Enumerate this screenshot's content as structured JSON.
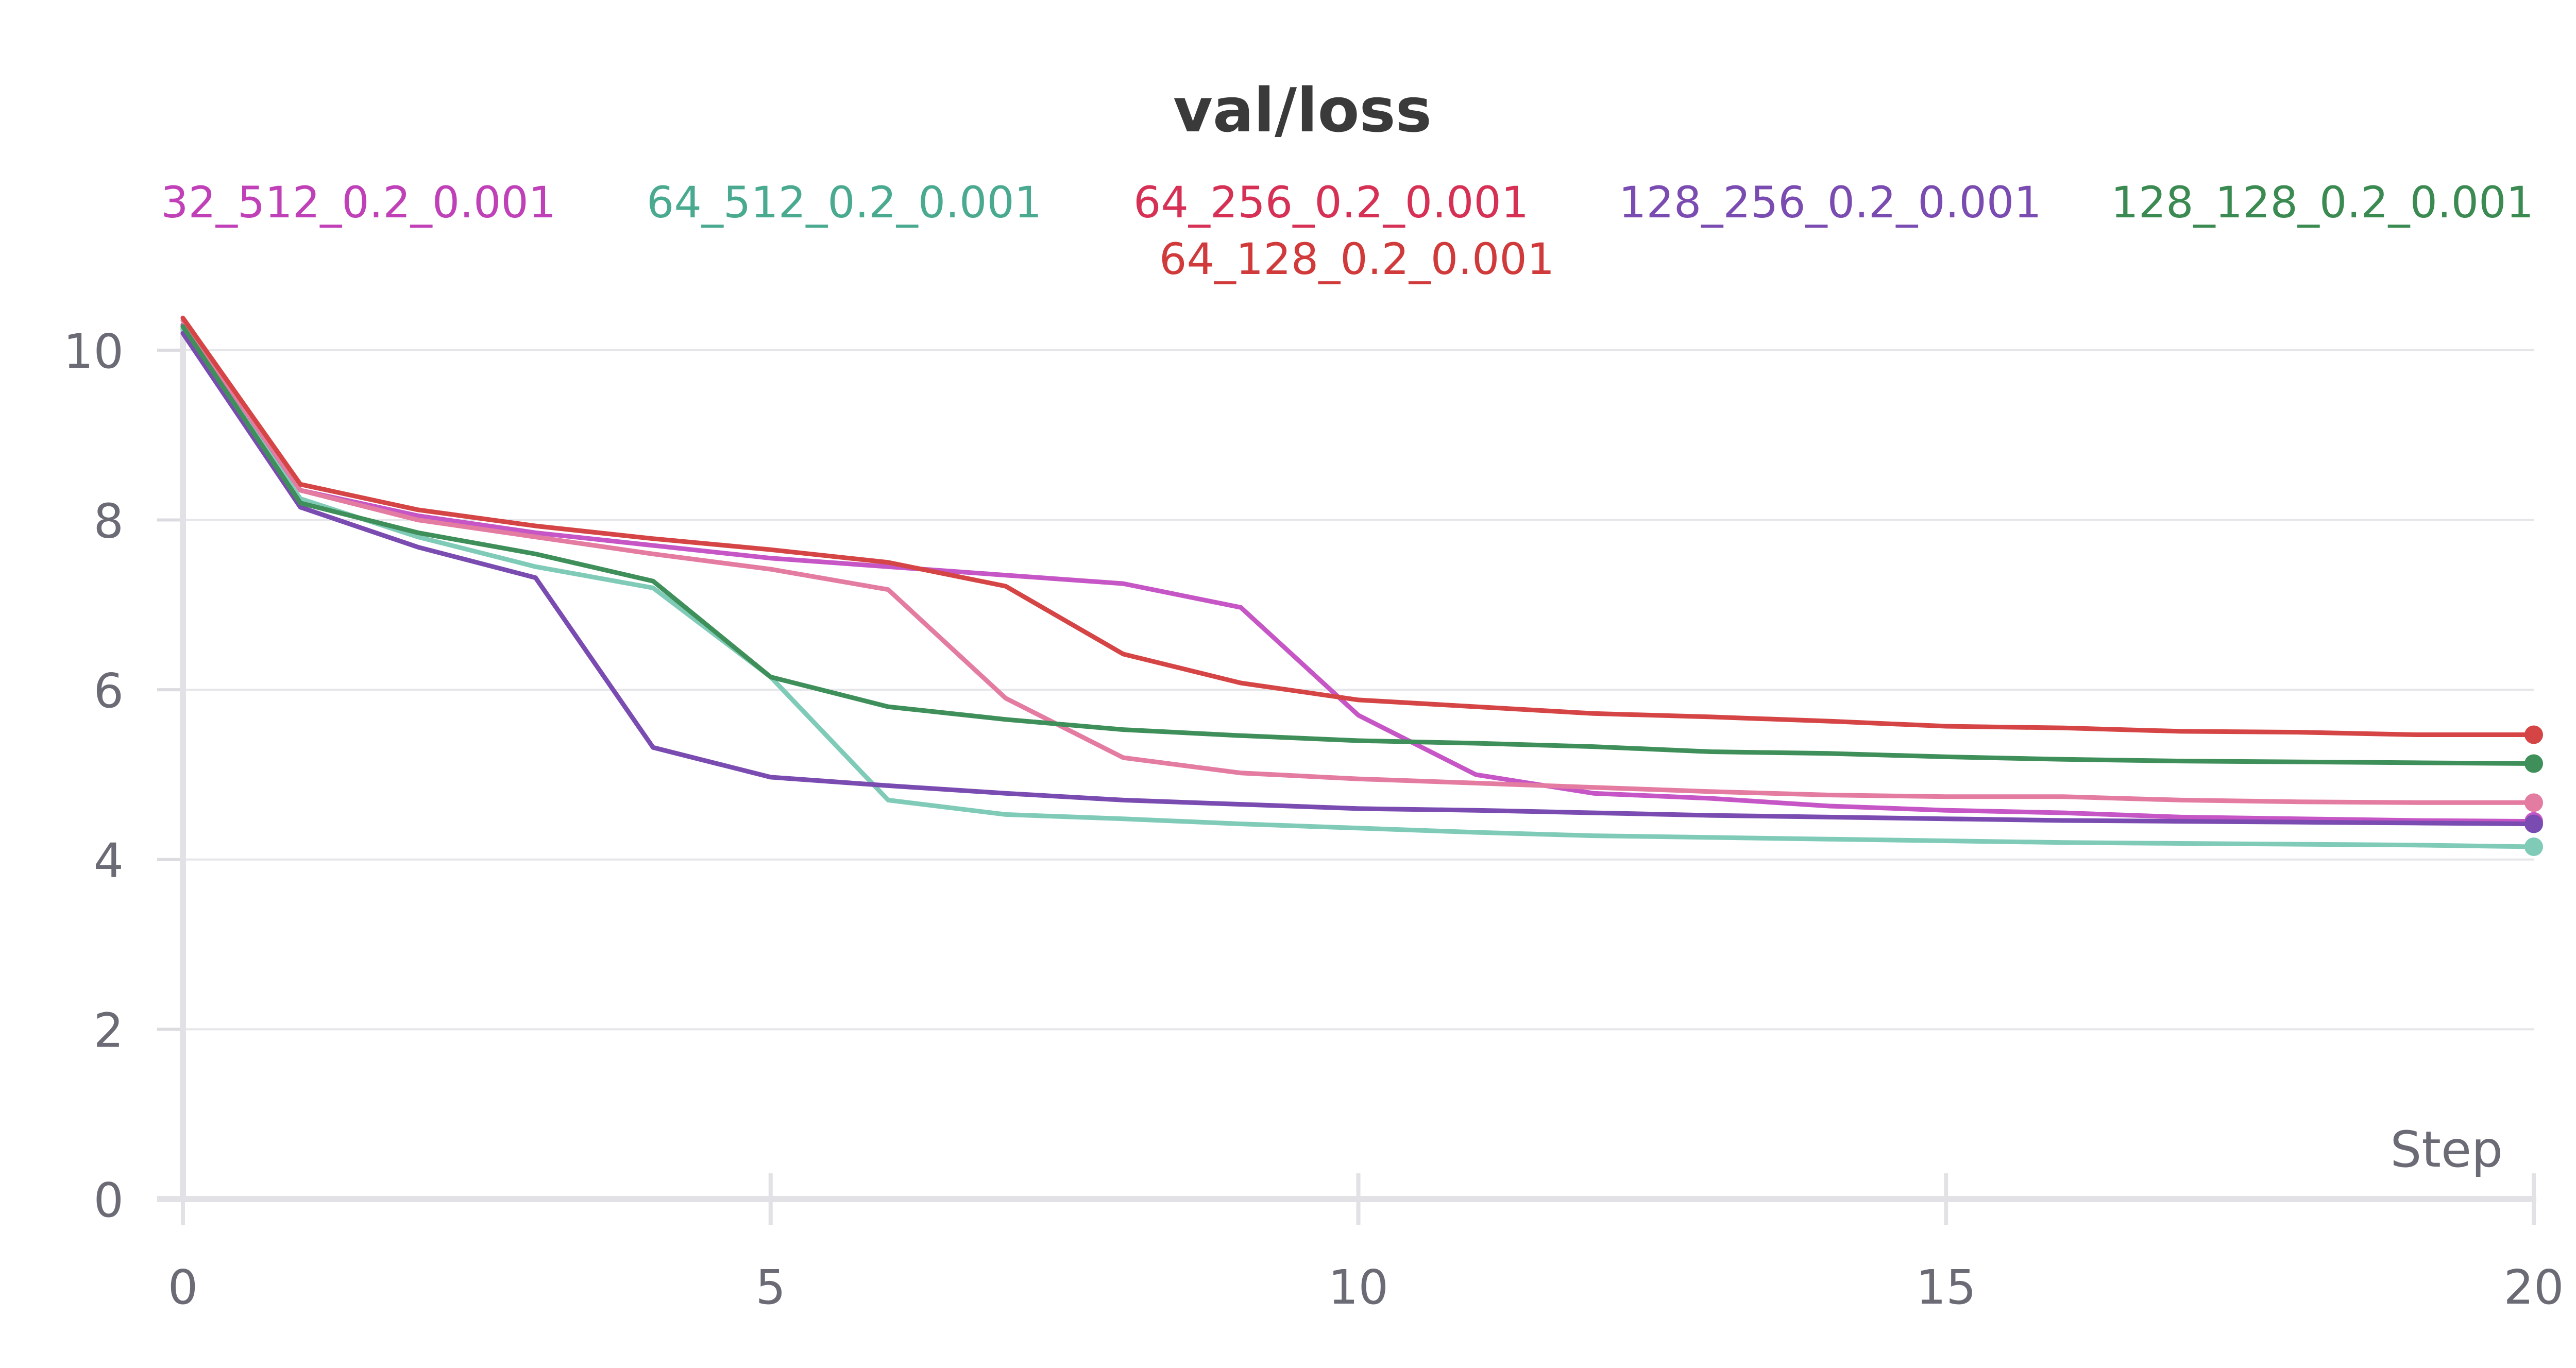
{
  "chart_data": {
    "type": "line",
    "title": "val/loss",
    "xlabel": "Step",
    "ylabel": "",
    "xlim": [
      0,
      20
    ],
    "ylim": [
      0,
      10.4
    ],
    "x_ticks": [
      0,
      5,
      10,
      15,
      20
    ],
    "y_ticks": [
      0,
      2,
      4,
      6,
      8,
      10
    ],
    "grid": true,
    "legend_position": "top",
    "x": [
      0,
      1,
      2,
      3,
      4,
      5,
      6,
      7,
      8,
      9,
      10,
      11,
      12,
      13,
      14,
      15,
      16,
      17,
      18,
      19,
      20
    ],
    "series": [
      {
        "name": "32_512_0.2_0.001",
        "color": "#c656c6",
        "legend_color": "#c040b8",
        "values": [
          10.3,
          8.35,
          8.05,
          7.85,
          7.7,
          7.55,
          7.45,
          7.35,
          7.25,
          6.97,
          5.7,
          5.0,
          4.78,
          4.72,
          4.63,
          4.58,
          4.55,
          4.5,
          4.48,
          4.46,
          4.45
        ]
      },
      {
        "name": "64_512_0.2_0.001",
        "color": "#7fcbb8",
        "legend_color": "#4aaa90",
        "values": [
          10.25,
          8.25,
          7.8,
          7.45,
          7.2,
          6.15,
          4.7,
          4.53,
          4.48,
          4.42,
          4.37,
          4.32,
          4.28,
          4.26,
          4.24,
          4.22,
          4.2,
          4.19,
          4.18,
          4.17,
          4.15
        ]
      },
      {
        "name": "64_256_0.2_0.001",
        "color": "#e47ba0",
        "legend_color": "#d63055",
        "values": [
          10.35,
          8.35,
          8.0,
          7.8,
          7.6,
          7.42,
          7.18,
          5.9,
          5.2,
          5.02,
          4.95,
          4.9,
          4.85,
          4.8,
          4.76,
          4.74,
          4.74,
          4.7,
          4.68,
          4.67,
          4.67
        ]
      },
      {
        "name": "128_256_0.2_0.001",
        "color": "#7a4bb0",
        "legend_color": "#7a4bb0",
        "values": [
          10.2,
          8.15,
          7.68,
          7.32,
          5.32,
          4.97,
          4.87,
          4.78,
          4.7,
          4.65,
          4.6,
          4.58,
          4.55,
          4.52,
          4.5,
          4.48,
          4.46,
          4.45,
          4.44,
          4.43,
          4.42
        ]
      },
      {
        "name": "128_128_0.2_0.001",
        "color": "#3f8f5a",
        "legend_color": "#3a8a52",
        "values": [
          10.28,
          8.2,
          7.85,
          7.6,
          7.28,
          6.15,
          5.8,
          5.65,
          5.53,
          5.46,
          5.4,
          5.37,
          5.33,
          5.27,
          5.25,
          5.21,
          5.18,
          5.16,
          5.15,
          5.14,
          5.13
        ]
      },
      {
        "name": "64_128_0.2_0.001",
        "color": "#d64545",
        "legend_color": "#d13a3a",
        "values": [
          10.38,
          8.42,
          8.12,
          7.93,
          7.78,
          7.65,
          7.5,
          7.22,
          6.42,
          6.08,
          5.88,
          5.8,
          5.72,
          5.68,
          5.63,
          5.57,
          5.55,
          5.51,
          5.5,
          5.47,
          5.47
        ]
      }
    ]
  }
}
